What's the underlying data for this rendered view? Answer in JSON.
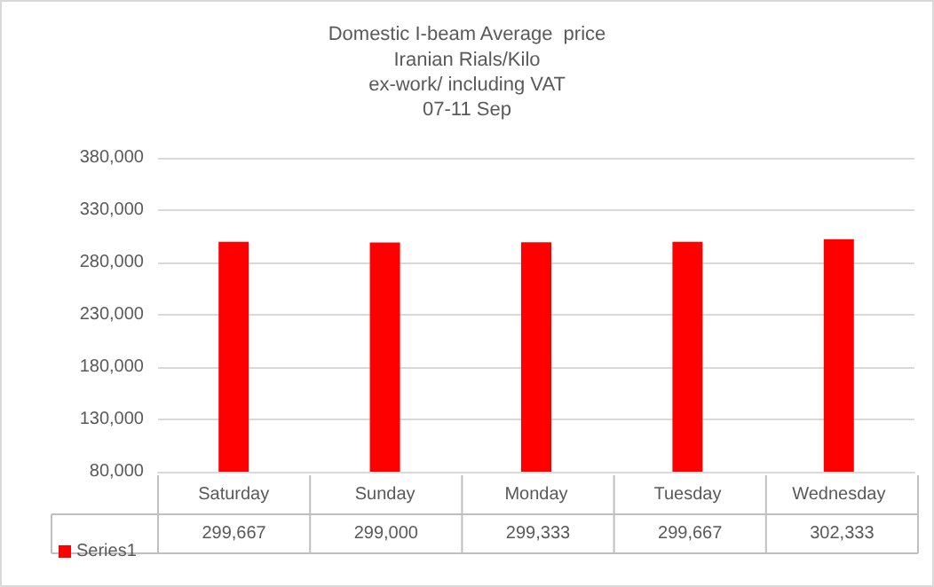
{
  "chart_data": {
    "type": "bar",
    "title": "Domestic I-beam Average  price",
    "subtitle": "Iranian Rials/Kilo\nex-work/ including VAT\n07-11 Sep",
    "categories": [
      "Saturday",
      "Sunday",
      "Monday",
      "Tuesday",
      "Wednesday"
    ],
    "series": [
      {
        "name": "Series1",
        "color": "#ff0000",
        "values": [
          299667,
          299000,
          299333,
          299667,
          302333
        ],
        "value_labels": [
          "299,667",
          "299,000",
          "299,333",
          "299,667",
          "302,333"
        ]
      }
    ],
    "ylim": [
      80000,
      380000
    ],
    "yticks": [
      {
        "value": 80000,
        "label": "80,000"
      },
      {
        "value": 130000,
        "label": "130,000"
      },
      {
        "value": 180000,
        "label": "180,000"
      },
      {
        "value": 230000,
        "label": "230,000"
      },
      {
        "value": 280000,
        "label": "280,000"
      },
      {
        "value": 330000,
        "label": "330,000"
      },
      {
        "value": 380000,
        "label": "380,000"
      }
    ],
    "grid": "y",
    "legend": "bottom left"
  }
}
